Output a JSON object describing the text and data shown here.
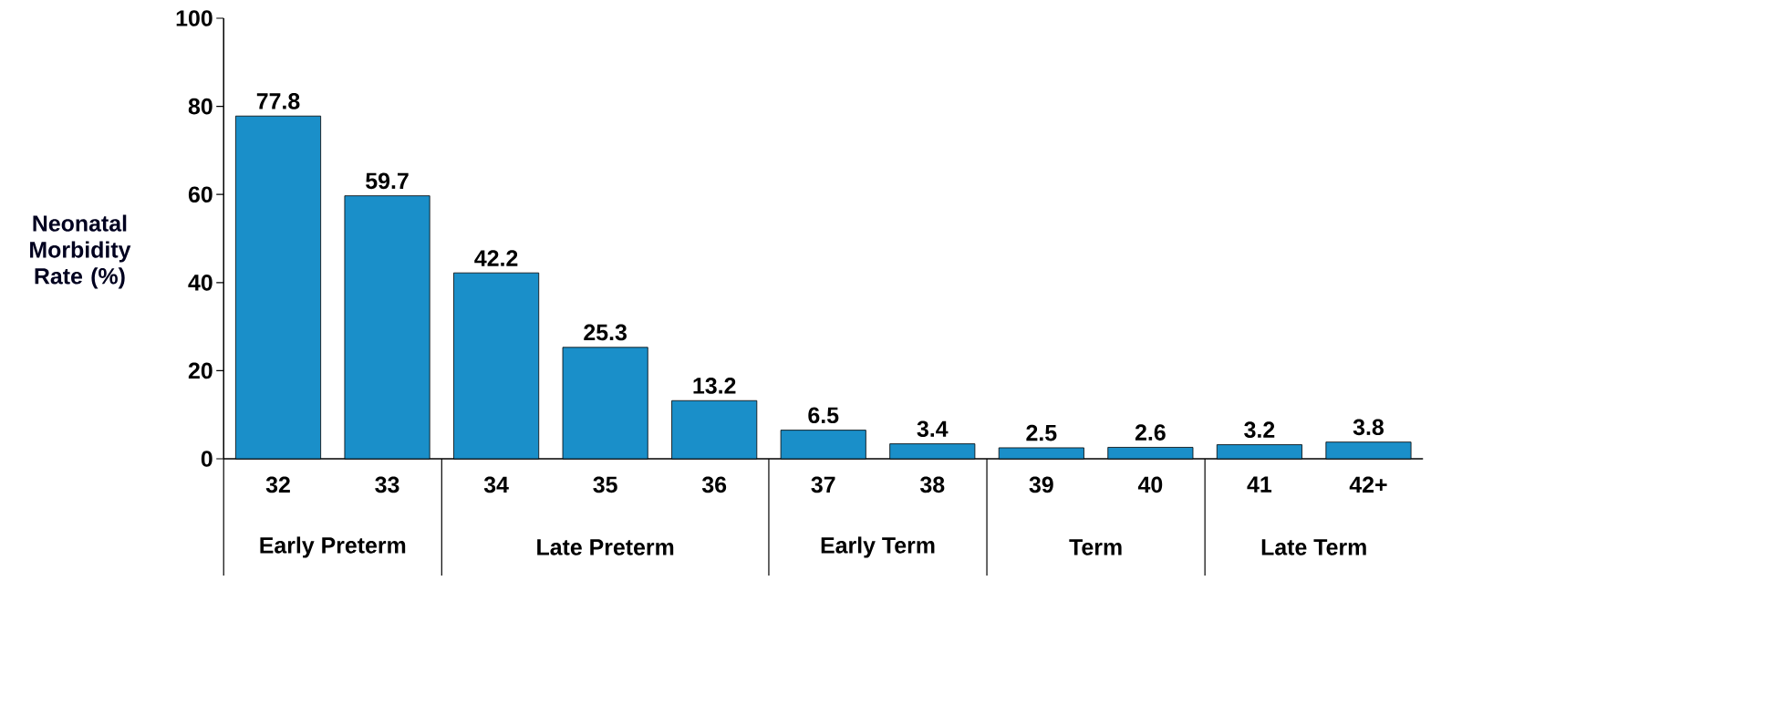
{
  "chart_data": {
    "type": "bar",
    "ylabel": "Neonatal Morbidity Rate (%)",
    "categories": [
      "32",
      "33",
      "34",
      "35",
      "36",
      "37",
      "38",
      "39",
      "40",
      "41",
      "42+"
    ],
    "values": [
      77.8,
      59.7,
      42.2,
      25.3,
      13.2,
      6.5,
      3.4,
      2.5,
      2.6,
      3.2,
      3.8
    ],
    "color": "#1a8fc9",
    "data_labels": true,
    "ylim": [
      0,
      100
    ],
    "yticks": [
      0,
      20,
      40,
      60,
      80,
      100
    ],
    "annotations": [
      "Early Preterm",
      "Late Preterm",
      "Early Term",
      "Term",
      "Late Term"
    ]
  }
}
